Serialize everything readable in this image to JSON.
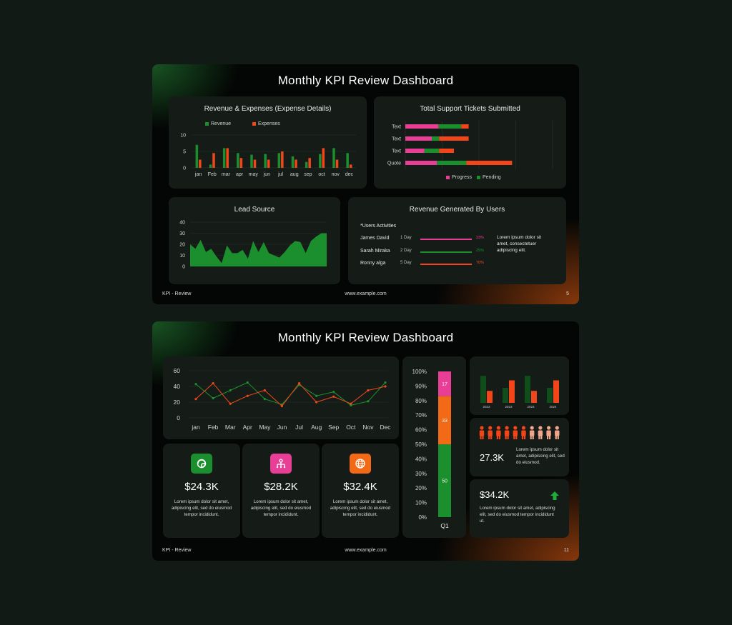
{
  "slide1": {
    "title": "Monthly KPI Review Dashboard",
    "footer": {
      "left": "KPI - Review",
      "center": "www.example.com",
      "page": "5"
    },
    "revenue_expenses": {
      "title": "Revenue & Expenses (Expense Details)",
      "legend": [
        "Revenue",
        "Expenses"
      ]
    },
    "tickets": {
      "title": "Total Support Tickets Submitted",
      "legend": [
        "Progress",
        "Pending"
      ]
    },
    "lead_source": {
      "title": "Lead Source"
    },
    "revenue_users": {
      "title": "Revenue Generated By Users",
      "heading": "*Users Activities",
      "rows": [
        {
          "name": "James David",
          "days": "1 Day",
          "pct": "23%",
          "color": "#e83e96"
        },
        {
          "name": "Sarah Miraka",
          "days": "2 Day",
          "pct": "25%",
          "color": "#1b8f2e"
        },
        {
          "name": "Ronny alga",
          "days": "5 Day",
          "pct": "70%",
          "color": "#f2461a"
        }
      ],
      "note": "Lorem ipsum dolor sit amet, consectetuer adipiscing elit."
    }
  },
  "slide2": {
    "title": "Monthly KPI Review Dashboard",
    "footer": {
      "left": "KPI - Review",
      "center": "www.example.com",
      "page": "11"
    },
    "kpis": [
      {
        "value": "$24.3K",
        "desc": "Lorem ipsum dolor sit amet, adipiscing elit, sed do eiusmod tempor incididunt.",
        "color": "#1b8f2e",
        "icon": "sticker-icon"
      },
      {
        "value": "$28.2K",
        "desc": "Lorem ipsum dolor sit amet, adipiscing elit, sed do eiusmod tempor incididunt.",
        "color": "#e83e96",
        "icon": "network-icon"
      },
      {
        "value": "$32.4K",
        "desc": "Lorem ipsum dolor sit amet, adipiscing elit, sed do eiusmod tempor incididunt.",
        "color": "#f26a16",
        "icon": "globe-icon"
      }
    ],
    "people": {
      "value": "27.3K",
      "desc": "Lorem ipsum dolor sit amet, adipiscing elit, sed do eiusmod."
    },
    "summary": {
      "value": "$34.2K",
      "desc": "Lorem ipsum dolor sit amet, adipiscing elit, sed do eiusmod tempor incididunt ut.",
      "arrow": "arrow-up-icon"
    }
  },
  "colors": {
    "green": "#1b8f2e",
    "red": "#f2461a",
    "pink": "#e83e96",
    "orange": "#f26a16",
    "dark_green": "#0f4d1b"
  },
  "chart_data": [
    {
      "id": "revenue_expenses",
      "type": "bar",
      "title": "Revenue & Expenses (Expense Details)",
      "categories": [
        "jan",
        "Feb",
        "mar",
        "apr",
        "may",
        "jun",
        "jul",
        "aug",
        "sep",
        "oct",
        "nov",
        "dec"
      ],
      "series": [
        {
          "name": "Revenue",
          "values": [
            7,
            1,
            6,
            4.5,
            4,
            4.2,
            4.5,
            3.5,
            1.8,
            4.2,
            6,
            4.5
          ]
        },
        {
          "name": "Expenses",
          "values": [
            2.5,
            4.5,
            6,
            3,
            2.5,
            2.5,
            5,
            2.5,
            3,
            6,
            2.5,
            1
          ]
        }
      ],
      "yticks": [
        0,
        5,
        10
      ],
      "ylim": [
        0,
        10
      ],
      "grid": true
    },
    {
      "id": "tickets",
      "type": "bar",
      "orientation": "horizontal",
      "title": "Total Support Tickets Submitted",
      "categories": [
        "Text",
        "Text",
        "Text",
        "Quote"
      ],
      "series": [
        {
          "name": "Progress",
          "values": [
            45,
            36,
            26,
            43
          ]
        },
        {
          "name": "Pending",
          "values": [
            31,
            10,
            20,
            40
          ]
        },
        {
          "name": "",
          "values": [
            10,
            40,
            20,
            62
          ]
        }
      ],
      "xlim": [
        0,
        200
      ],
      "grid": true
    },
    {
      "id": "lead_source",
      "type": "area",
      "title": "Lead Source",
      "values": [
        20,
        16,
        24,
        13,
        16,
        9,
        3,
        19,
        12,
        12,
        15,
        7,
        23,
        13,
        22,
        12,
        10,
        8,
        13,
        19,
        23,
        22,
        12,
        23,
        27,
        30,
        30
      ],
      "yticks": [
        0,
        10,
        20,
        30,
        40
      ],
      "ylim": [
        0,
        40
      ],
      "grid": true
    },
    {
      "id": "monthly_lines",
      "type": "line",
      "categories": [
        "jan",
        "Feb",
        "Mar",
        "Apr",
        "May",
        "Jun",
        "Jul",
        "Aug",
        "Sep",
        "Oct",
        "Nov",
        "Dec"
      ],
      "series": [
        {
          "values": [
            43,
            25,
            35,
            45,
            24,
            17,
            42,
            28,
            33,
            16,
            21,
            45
          ]
        },
        {
          "values": [
            24,
            44,
            18,
            28,
            35,
            15,
            44,
            20,
            27,
            18,
            35,
            40
          ]
        }
      ],
      "yticks": [
        0,
        20,
        40,
        60
      ],
      "ylim": [
        0,
        60
      ],
      "grid": true
    },
    {
      "id": "q1_stack",
      "type": "bar",
      "stacked": true,
      "categories": [
        "Q1"
      ],
      "series": [
        {
          "values": [
            50
          ]
        },
        {
          "values": [
            33
          ]
        },
        {
          "values": [
            17
          ]
        }
      ],
      "yticks": [
        "0%",
        "10%",
        "20%",
        "30%",
        "40%",
        "50%",
        "60%",
        "70%",
        "80%",
        "90%",
        "100%"
      ],
      "ylim": [
        0,
        100
      ]
    },
    {
      "id": "yearly_bars",
      "type": "bar",
      "categories": [
        "2023",
        "2023",
        "2023",
        "2024"
      ],
      "series": [
        {
          "values": [
            90,
            50,
            90,
            50
          ]
        },
        {
          "values": [
            40,
            75,
            40,
            75
          ]
        }
      ]
    },
    {
      "id": "people_pictogram",
      "type": "pictogram",
      "total": 10,
      "filled": 6
    }
  ]
}
